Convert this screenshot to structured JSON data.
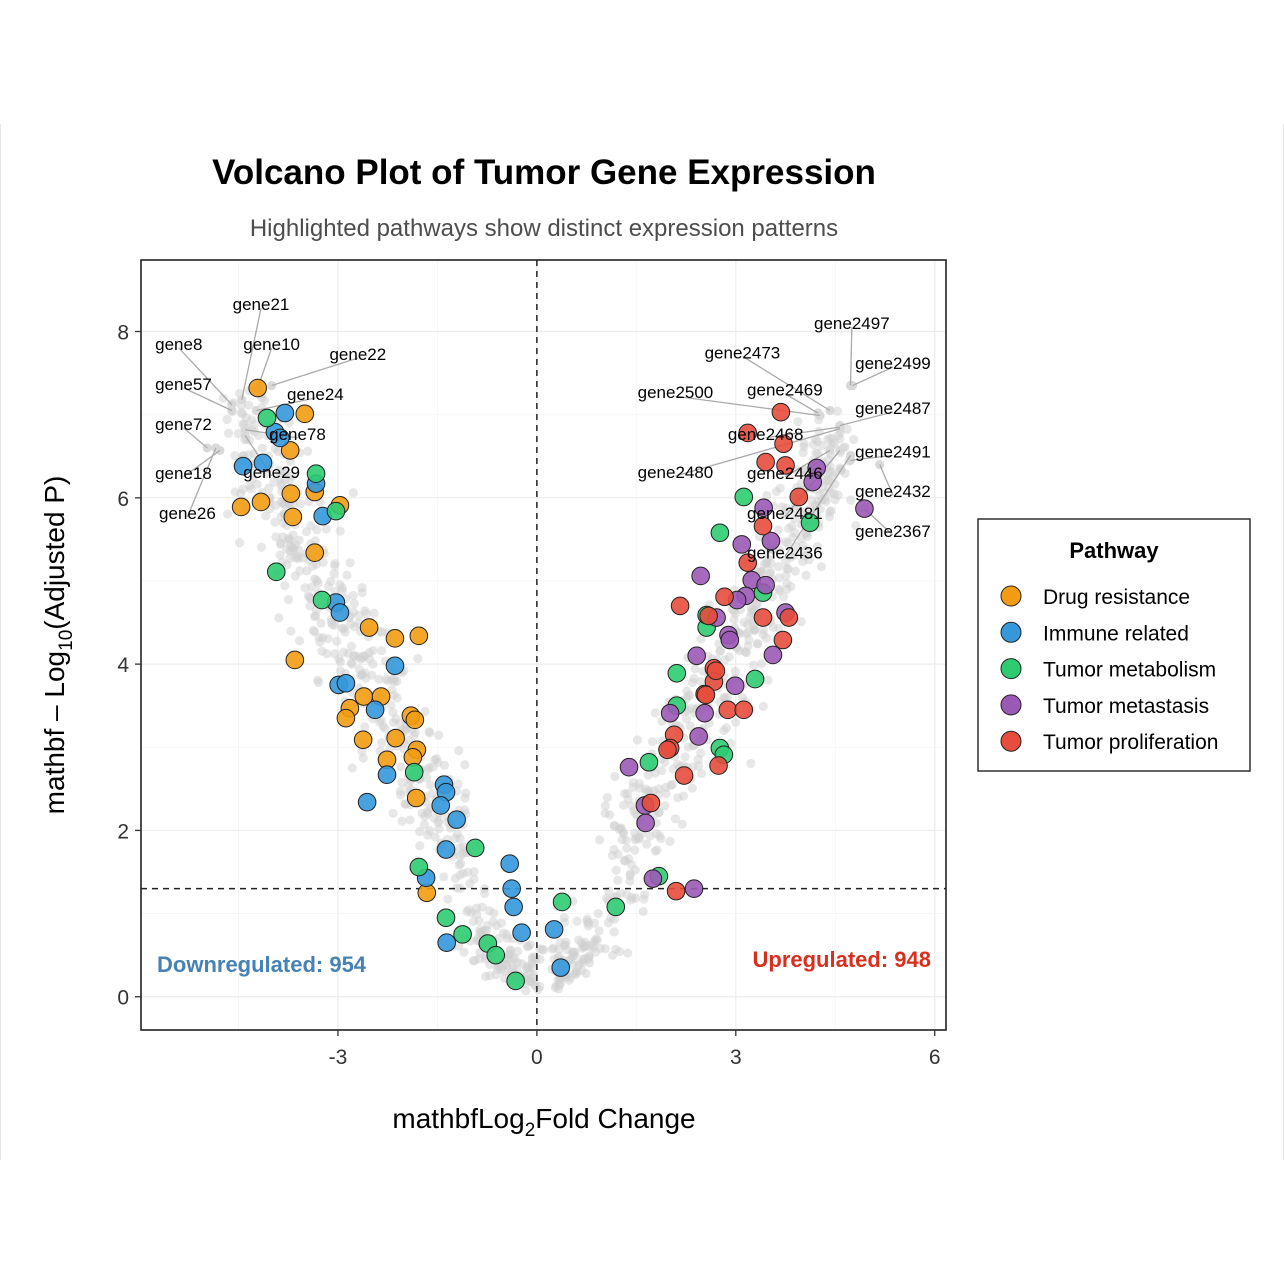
{
  "chart_data": {
    "type": "scatter",
    "title": "Volcano Plot of Tumor Gene Expression",
    "subtitle": "Highlighted pathways show distinct expression patterns",
    "xlabel_main": "mathbfLog",
    "xlabel_sub": "2",
    "xlabel_tail": "Fold Change",
    "ylabel_main": "mathbf – Log",
    "ylabel_sub": "10",
    "ylabel_tail": "(Adjusted P)",
    "xlim": [
      -5.97,
      6.17
    ],
    "ylim": [
      -0.4,
      8.86
    ],
    "xticks": [
      -3,
      0,
      3,
      6
    ],
    "xtick_labels": [
      "-3",
      "0",
      "3",
      "6"
    ],
    "yticks": [
      0,
      2,
      4,
      6,
      8
    ],
    "ytick_labels": [
      "0",
      "2",
      "4",
      "6",
      "8"
    ],
    "grid": true,
    "thresholds": {
      "x": 0,
      "y": 1.3
    },
    "annotations": {
      "down": {
        "text": "Downregulated: 954",
        "color": "#4682B4",
        "x": -5.8,
        "y": 0.4
      },
      "up": {
        "text": "Upregulated: 948",
        "color": "#D7301F",
        "x": 5.95,
        "y": 0.45
      }
    },
    "background": {
      "color": "#cfcfcf",
      "description_count_down": 954,
      "description_count_up": 948
    },
    "legend": {
      "title": "Pathway",
      "placement": "right"
    },
    "series": [
      {
        "name": "Drug resistance",
        "color": "#F39C12",
        "points": [
          [
            -4.21,
            7.32
          ],
          [
            -3.5,
            7.01
          ],
          [
            -3.72,
            6.57
          ],
          [
            -4.46,
            5.89
          ],
          [
            -4.16,
            5.95
          ],
          [
            -3.71,
            6.05
          ],
          [
            -3.68,
            5.77
          ],
          [
            -3.35,
            6.07
          ],
          [
            -2.97,
            5.91
          ],
          [
            -3.35,
            5.34
          ],
          [
            -2.53,
            4.44
          ],
          [
            -2.14,
            4.31
          ],
          [
            -1.78,
            4.34
          ],
          [
            -3.65,
            4.05
          ],
          [
            -2.82,
            3.47
          ],
          [
            -2.61,
            3.61
          ],
          [
            -2.35,
            3.61
          ],
          [
            -2.88,
            3.35
          ],
          [
            -2.62,
            3.09
          ],
          [
            -1.9,
            3.38
          ],
          [
            -1.84,
            3.33
          ],
          [
            -2.13,
            3.11
          ],
          [
            -2.26,
            2.85
          ],
          [
            -1.81,
            2.97
          ],
          [
            -1.87,
            2.88
          ],
          [
            -1.82,
            2.39
          ],
          [
            -1.66,
            1.25
          ]
        ]
      },
      {
        "name": "Immune related",
        "color": "#3498DB",
        "points": [
          [
            -3.8,
            7.02
          ],
          [
            -3.95,
            6.79
          ],
          [
            -3.87,
            6.72
          ],
          [
            -4.43,
            6.38
          ],
          [
            -4.13,
            6.42
          ],
          [
            -3.33,
            6.17
          ],
          [
            -3.23,
            5.78
          ],
          [
            -3.03,
            4.74
          ],
          [
            -2.97,
            4.62
          ],
          [
            -2.99,
            3.75
          ],
          [
            -2.88,
            3.77
          ],
          [
            -2.44,
            3.45
          ],
          [
            -2.14,
            3.98
          ],
          [
            -2.56,
            2.34
          ],
          [
            -2.26,
            2.67
          ],
          [
            -1.4,
            2.55
          ],
          [
            -1.37,
            2.46
          ],
          [
            -1.45,
            2.3
          ],
          [
            -1.21,
            2.13
          ],
          [
            -1.37,
            1.77
          ],
          [
            -1.67,
            1.43
          ],
          [
            -1.36,
            0.65
          ],
          [
            -0.41,
            1.6
          ],
          [
            -0.38,
            1.3
          ],
          [
            -0.35,
            1.08
          ],
          [
            -0.23,
            0.77
          ],
          [
            0.26,
            0.81
          ],
          [
            0.36,
            0.35
          ]
        ]
      },
      {
        "name": "Tumor metabolism",
        "color": "#2ECC71",
        "points": [
          [
            -4.07,
            6.96
          ],
          [
            -3.33,
            6.29
          ],
          [
            -3.03,
            5.84
          ],
          [
            -3.93,
            5.11
          ],
          [
            -3.24,
            4.77
          ],
          [
            -1.85,
            2.7
          ],
          [
            -1.78,
            1.56
          ],
          [
            -0.93,
            1.79
          ],
          [
            -1.37,
            0.95
          ],
          [
            -1.12,
            0.75
          ],
          [
            -0.74,
            0.64
          ],
          [
            -0.62,
            0.5
          ],
          [
            -0.32,
            0.19
          ],
          [
            0.38,
            1.14
          ],
          [
            1.19,
            1.08
          ],
          [
            1.84,
            1.45
          ],
          [
            1.69,
            2.82
          ],
          [
            2.11,
            3.5
          ],
          [
            2.11,
            3.89
          ],
          [
            2.56,
            4.44
          ],
          [
            2.56,
            4.59
          ],
          [
            2.76,
            2.99
          ],
          [
            2.82,
            2.91
          ],
          [
            3.29,
            3.82
          ],
          [
            2.76,
            5.58
          ],
          [
            3.12,
            6.01
          ],
          [
            4.12,
            5.7
          ],
          [
            3.41,
            4.86
          ]
        ]
      },
      {
        "name": "Tumor metastasis",
        "color": "#9B59B6",
        "points": [
          [
            4.22,
            6.36
          ],
          [
            4.16,
            6.19
          ],
          [
            4.94,
            5.87
          ],
          [
            3.42,
            5.88
          ],
          [
            3.53,
            5.48
          ],
          [
            3.09,
            5.44
          ],
          [
            3.24,
            5.01
          ],
          [
            3.45,
            4.95
          ],
          [
            3.15,
            4.82
          ],
          [
            3.02,
            4.77
          ],
          [
            2.47,
            5.06
          ],
          [
            2.89,
            4.35
          ],
          [
            2.91,
            4.29
          ],
          [
            3.75,
            4.62
          ],
          [
            3.56,
            4.11
          ],
          [
            2.41,
            4.1
          ],
          [
            2.01,
            3.41
          ],
          [
            2.53,
            3.41
          ],
          [
            2.44,
            3.13
          ],
          [
            2.99,
            3.74
          ],
          [
            1.39,
            2.76
          ],
          [
            1.63,
            2.3
          ],
          [
            1.64,
            2.09
          ],
          [
            1.75,
            1.42
          ],
          [
            2.37,
            1.3
          ],
          [
            2.71,
            4.56
          ]
        ]
      },
      {
        "name": "Tumor proliferation",
        "color": "#E74C3C",
        "points": [
          [
            3.68,
            7.03
          ],
          [
            3.18,
            6.78
          ],
          [
            3.72,
            6.65
          ],
          [
            3.45,
            6.43
          ],
          [
            3.75,
            6.39
          ],
          [
            3.95,
            6.01
          ],
          [
            3.41,
            5.66
          ],
          [
            3.18,
            5.22
          ],
          [
            2.16,
            4.7
          ],
          [
            2.59,
            4.58
          ],
          [
            2.83,
            4.81
          ],
          [
            3.41,
            4.56
          ],
          [
            3.8,
            4.56
          ],
          [
            3.71,
            4.29
          ],
          [
            2.67,
            3.95
          ],
          [
            2.67,
            3.79
          ],
          [
            2.53,
            3.64
          ],
          [
            2.7,
            3.92
          ],
          [
            2.55,
            3.63
          ],
          [
            2.88,
            3.45
          ],
          [
            3.12,
            3.45
          ],
          [
            2.07,
            3.15
          ],
          [
            2.01,
            2.99
          ],
          [
            1.97,
            2.97
          ],
          [
            2.22,
            2.66
          ],
          [
            2.74,
            2.78
          ],
          [
            1.72,
            2.33
          ],
          [
            2.1,
            1.27
          ]
        ]
      }
    ],
    "labeled_genes": [
      {
        "text": "gene21",
        "x": -4.45,
        "y": 7.18,
        "lx": -4.16,
        "ly": 8.33
      },
      {
        "text": "gene8",
        "x": -4.6,
        "y": 7.12,
        "lx": -5.4,
        "ly": 7.85
      },
      {
        "text": "gene10",
        "x": -4.21,
        "y": 7.32,
        "lx": -4.0,
        "ly": 7.85
      },
      {
        "text": "gene22",
        "x": -4.0,
        "y": 7.35,
        "lx": -2.7,
        "ly": 7.73
      },
      {
        "text": "gene57",
        "x": -4.6,
        "y": 7.05,
        "lx": -5.33,
        "ly": 7.37
      },
      {
        "text": "gene24",
        "x": -4.23,
        "y": 7.05,
        "lx": -3.34,
        "ly": 7.25
      },
      {
        "text": "gene72",
        "x": -4.97,
        "y": 6.6,
        "lx": -5.33,
        "ly": 6.89
      },
      {
        "text": "gene78",
        "x": -4.4,
        "y": 6.82,
        "lx": -3.61,
        "ly": 6.77
      },
      {
        "text": "gene18",
        "x": -4.78,
        "y": 6.57,
        "lx": -5.33,
        "ly": 6.3
      },
      {
        "text": "gene29",
        "x": -4.4,
        "y": 6.75,
        "lx": -4.0,
        "ly": 6.31
      },
      {
        "text": "gene26",
        "x": -4.84,
        "y": 6.6,
        "lx": -5.27,
        "ly": 5.82
      },
      {
        "text": "gene2497",
        "x": 4.73,
        "y": 7.35,
        "lx": 4.75,
        "ly": 8.1
      },
      {
        "text": "gene2473",
        "x": 4.42,
        "y": 7.05,
        "lx": 3.1,
        "ly": 7.75
      },
      {
        "text": "gene2499",
        "x": 4.76,
        "y": 7.35,
        "lx": 5.37,
        "ly": 7.62
      },
      {
        "text": "gene2500",
        "x": 4.27,
        "y": 6.99,
        "lx": 2.09,
        "ly": 7.27
      },
      {
        "text": "gene2469",
        "x": 4.24,
        "y": 7.02,
        "lx": 3.74,
        "ly": 7.3
      },
      {
        "text": "gene2487",
        "x": 4.57,
        "y": 6.87,
        "lx": 5.37,
        "ly": 7.08
      },
      {
        "text": "gene2468",
        "x": 4.57,
        "y": 6.85,
        "lx": 3.45,
        "ly": 6.77
      },
      {
        "text": "gene2446",
        "x": 4.42,
        "y": 6.57,
        "lx": 3.74,
        "ly": 6.3
      },
      {
        "text": "gene2480",
        "x": 4.57,
        "y": 6.83,
        "lx": 2.09,
        "ly": 6.31
      },
      {
        "text": "gene2491",
        "x": 4.73,
        "y": 6.45,
        "lx": 5.37,
        "ly": 6.56
      },
      {
        "text": "gene2481",
        "x": 4.57,
        "y": 6.57,
        "lx": 3.74,
        "ly": 5.82
      },
      {
        "text": "gene2432",
        "x": 5.17,
        "y": 6.4,
        "lx": 5.37,
        "ly": 6.08
      },
      {
        "text": "gene2436",
        "x": 4.73,
        "y": 6.51,
        "lx": 3.74,
        "ly": 5.34
      },
      {
        "text": "gene2367",
        "x": 4.94,
        "y": 5.87,
        "lx": 5.37,
        "ly": 5.6
      }
    ]
  }
}
